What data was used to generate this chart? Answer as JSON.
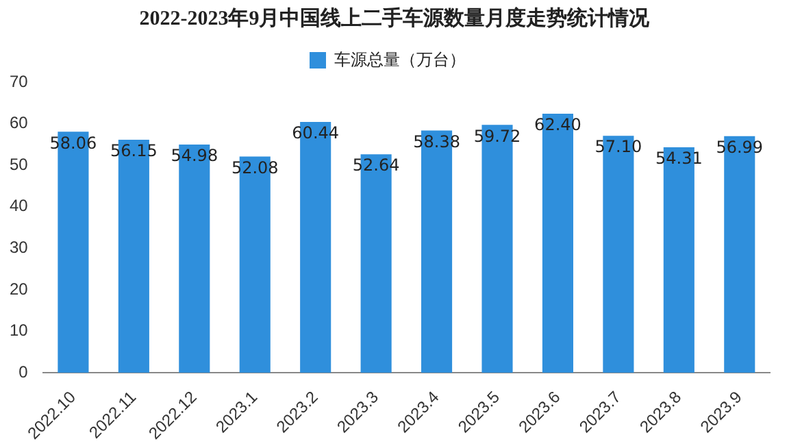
{
  "chart_data": {
    "type": "bar",
    "title": "2022-2023年9月中国线上二手车源数量月度走势统计情况",
    "categories": [
      "2022.10",
      "2022.11",
      "2022.12",
      "2023.1",
      "2023.2",
      "2023.3",
      "2023.4",
      "2023.5",
      "2023.6",
      "2023.7",
      "2023.8",
      "2023.9"
    ],
    "series": [
      {
        "name": "车源总量（万台）",
        "color": "#2f8fdc",
        "values": [
          58.06,
          56.15,
          54.98,
          52.08,
          60.44,
          52.64,
          58.38,
          59.72,
          62.4,
          57.1,
          54.31,
          56.99
        ]
      }
    ],
    "value_labels": [
      "58.06",
      "56.15",
      "54.98",
      "52.08",
      "60.44",
      "52.64",
      "58.38",
      "59.72",
      "62.40",
      "57.10",
      "54.31",
      "56.99"
    ],
    "ylim": [
      0,
      70
    ],
    "yticks": [
      0,
      10,
      20,
      30,
      40,
      50,
      60,
      70
    ],
    "grid": false,
    "legend": "top"
  }
}
